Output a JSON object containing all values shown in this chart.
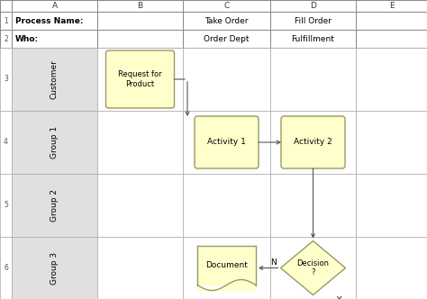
{
  "bg_color": "#f2f2f2",
  "white": "#ffffff",
  "swimlane_label_bg": "#e0e0e0",
  "box_fill": "#ffffcc",
  "box_edge": "#999966",
  "grid_line_color": "#aaaaaa",
  "header_line_color": "#888888",
  "arrow_color": "#555555",
  "text_color": "#000000",
  "col_labels": [
    "A",
    "B",
    "C",
    "D",
    "E"
  ],
  "process_name_label": "Process Name:",
  "who_label": "Who:",
  "col_c_label": "Take Order",
  "col_d_label": "Fill Order",
  "row2_c": "Order Dept",
  "row2_d": "Fulfillment",
  "swimlane_labels": [
    "Customer",
    "Group 1",
    "Group 2",
    "Group 3"
  ],
  "shape_labels": [
    "Request for\nProduct",
    "Activity 1",
    "Activity 2",
    "Document",
    "Decision\n?"
  ],
  "n_label": "N",
  "y_label": "Y"
}
